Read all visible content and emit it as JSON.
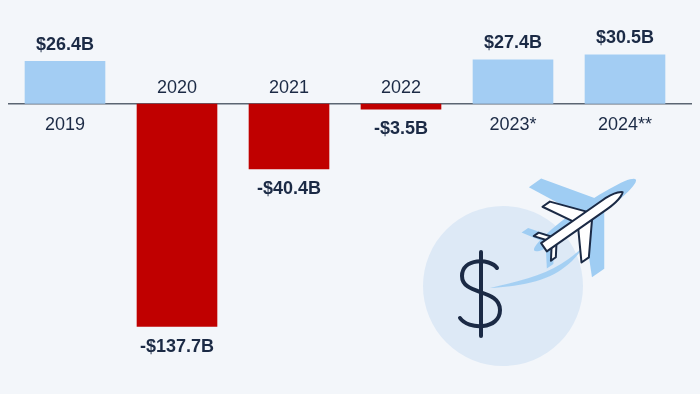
{
  "chart_data": {
    "type": "bar",
    "categories": [
      "2019",
      "2020",
      "2021",
      "2022",
      "2023*",
      "2024**"
    ],
    "values": [
      26.4,
      -137.7,
      -40.4,
      -3.5,
      27.4,
      30.5
    ],
    "value_labels": [
      "$26.4B",
      "-$137.7B",
      "-$40.4B",
      "-$3.5B",
      "$27.4B",
      "$30.5B"
    ],
    "colors": [
      "#a3cdf3",
      "#c00000",
      "#c00000",
      "#c00000",
      "#a3cdf3",
      "#a3cdf3"
    ],
    "ylim": [
      -160,
      40
    ],
    "grid": false,
    "data_labels": true,
    "tick_labels": "x"
  }
}
